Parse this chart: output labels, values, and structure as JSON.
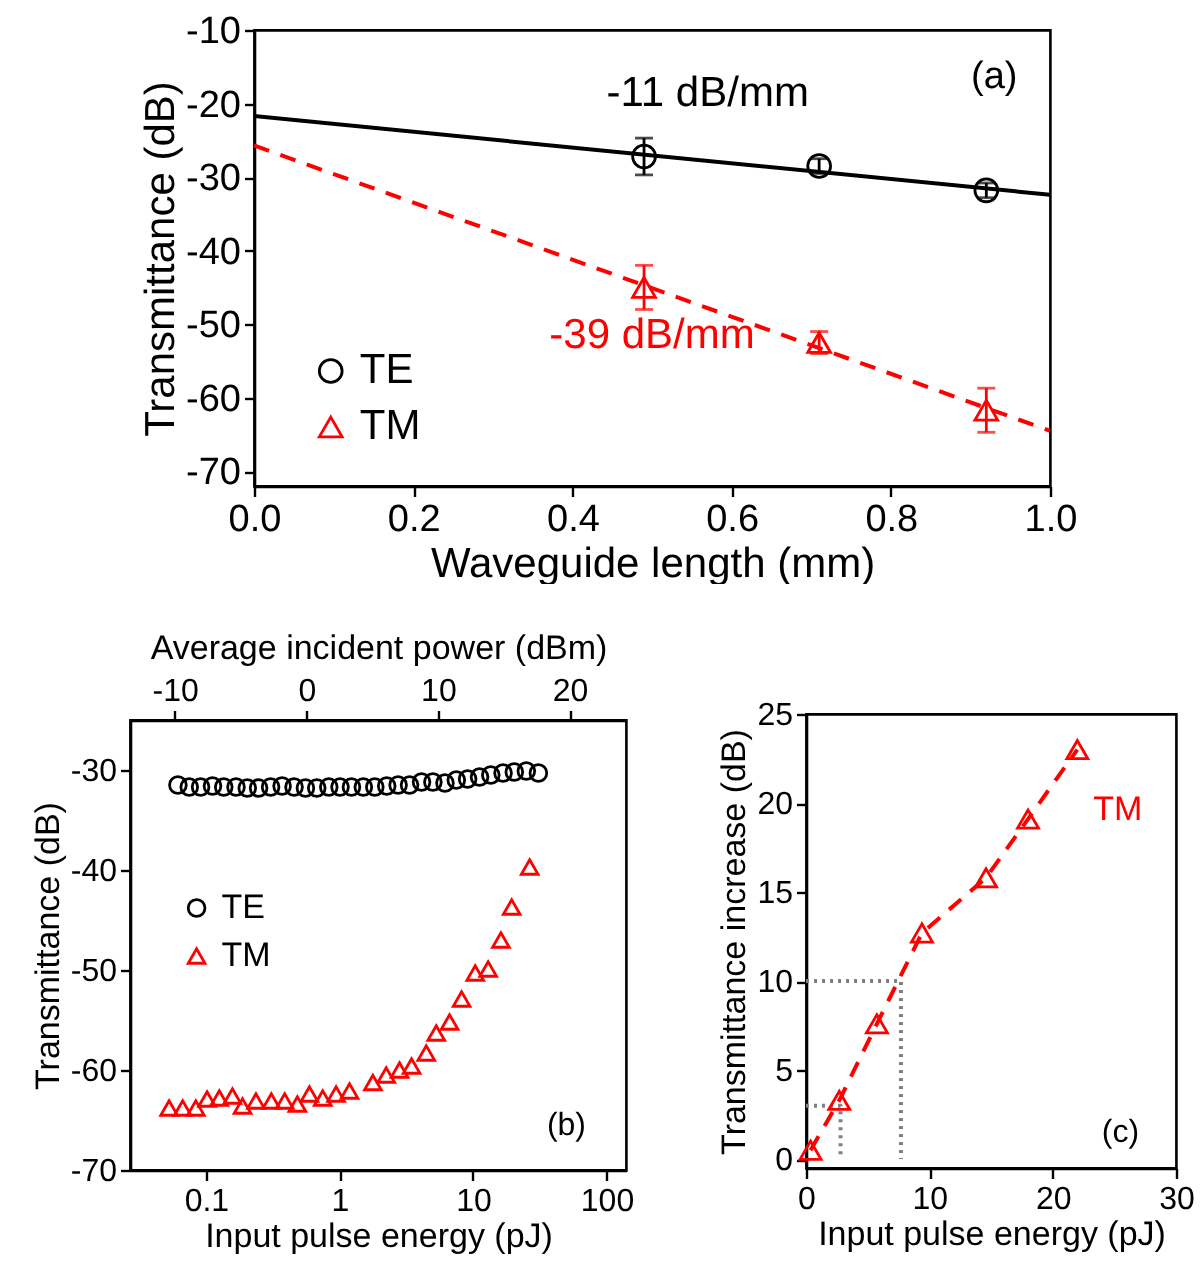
{
  "chart_data": [
    {
      "type": "scatter",
      "xlabel": "Waveguide length (mm)",
      "ylabel": "Transmittance (dB)",
      "xlim": [
        0,
        1
      ],
      "ylim": [
        -72,
        -10
      ],
      "xticks": [
        {
          "value": 0,
          "label": "0.0"
        },
        0.2,
        0.4,
        0.6,
        0.8,
        {
          "value": 1,
          "label": "1.0"
        }
      ],
      "yticks": [
        -70,
        -60,
        -50,
        -40,
        -30,
        -20,
        -10
      ],
      "legend": "bottom left",
      "annotations": [
        "(a)",
        "-11 dB/mm",
        "-39 dB/mm"
      ],
      "series": [
        {
          "name": "TE",
          "type": "scatter",
          "marker": "circle",
          "color": "#000000",
          "x": [
            0.49,
            0.71,
            0.92
          ],
          "values": [
            -27.2,
            -28.5,
            -31.8
          ],
          "errors": [
            2.5,
            1,
            1
          ]
        },
        {
          "name": "TM",
          "type": "scatter",
          "marker": "triangle",
          "color": "#ff0000",
          "x": [
            0.49,
            0.71,
            0.92
          ],
          "values": [
            -45,
            -52.5,
            -61.7
          ],
          "errors": [
            3,
            1.5,
            3
          ]
        },
        {
          "type": "line",
          "marker": "none",
          "line_style": "solid",
          "color": "#000000",
          "x": [
            0,
            1
          ],
          "values": [
            -21.7,
            -32.4
          ]
        },
        {
          "type": "line",
          "marker": "none",
          "line_style": "dashed",
          "color": "#ff0000",
          "x": [
            0,
            1
          ],
          "values": [
            -25.7,
            -64.5
          ]
        }
      ]
    },
    {
      "type": "scatter",
      "xlabel": "Input pulse energy (pJ)",
      "ylabel": "Transmittance (dB)",
      "x2label": "Average incident power (dBm)",
      "log": "x",
      "xlim": [
        0.027,
        140
      ],
      "xticks": [
        0.1,
        1,
        10,
        100
      ],
      "x2lim": [
        -13.4,
        24.3
      ],
      "x2ticks": [
        -10,
        0,
        10,
        20
      ],
      "ylim": [
        -70,
        -25
      ],
      "yticks": [
        -70,
        -60,
        -50,
        -40,
        -30
      ],
      "legend": "left",
      "annotations": [
        "(b)"
      ],
      "series": [
        {
          "name": "TE",
          "marker": "circle",
          "color": "#000000",
          "x": [
            0.0617,
            0.075,
            0.0912,
            0.112,
            0.136,
            0.168,
            0.204,
            0.248,
            0.305,
            0.372,
            0.457,
            0.556,
            0.676,
            0.832,
            1.01,
            1.23,
            1.51,
            1.84,
            2.26,
            2.75,
            3.35,
            4.12,
            5.01,
            6.17,
            7.5,
            9.12,
            11.2,
            13.6,
            16.8,
            20.4,
            25.1,
            30.9
          ],
          "values": [
            -31.5,
            -31.7,
            -31.7,
            -31.6,
            -31.7,
            -31.7,
            -31.8,
            -31.8,
            -31.7,
            -31.6,
            -31.7,
            -31.8,
            -31.8,
            -31.7,
            -31.7,
            -31.7,
            -31.7,
            -31.7,
            -31.6,
            -31.5,
            -31.5,
            -31.2,
            -31.2,
            -31.3,
            -31,
            -30.9,
            -30.7,
            -30.5,
            -30.3,
            -30.2,
            -30.1,
            -30.3
          ]
        },
        {
          "name": "TM",
          "marker": "triangle",
          "color": "#ff0000",
          "x": [
            0.053,
            0.067,
            0.084,
            0.102,
            0.126,
            0.158,
            0.188,
            0.237,
            0.309,
            0.389,
            0.484,
            0.596,
            0.75,
            0.944,
            1.19,
            1.78,
            2.24,
            2.82,
            3.47,
            4.47,
            5.31,
            6.68,
            8.22,
            10.4,
            13,
            16.2,
            19.5,
            26.6
          ],
          "values": [
            -63.8,
            -63.8,
            -63.8,
            -62.9,
            -62.8,
            -62.6,
            -63.6,
            -63.1,
            -63.1,
            -63.1,
            -63.4,
            -62.4,
            -62.8,
            -62.4,
            -62.1,
            -61.25,
            -60.5,
            -60,
            -59.6,
            -58.3,
            -56.3,
            -55.2,
            -52.9,
            -50.3,
            -49.9,
            -47,
            -43.7,
            -39.7
          ]
        }
      ]
    },
    {
      "type": "line",
      "xlabel": "Input pulse energy (pJ)",
      "ylabel": "Transmittance increase (dB)",
      "xlim": [
        0,
        30
      ],
      "xticks": [
        0,
        10,
        20,
        30
      ],
      "ylim": [
        -0.5,
        25
      ],
      "yticks": [
        0,
        5,
        10,
        15,
        20,
        25
      ],
      "annotations": [
        "(c)"
      ],
      "series": [
        {
          "type": "line",
          "line_style": "dotted",
          "marker": "none",
          "color": "#808080",
          "x": [
            0,
            7.7,
            7.7
          ],
          "values": [
            10,
            10,
            0
          ]
        },
        {
          "type": "line",
          "line_style": "dotted",
          "marker": "none",
          "color": "#808080",
          "x": [
            0,
            2.8,
            2.8
          ],
          "values": [
            3,
            3,
            0
          ]
        },
        {
          "name": "TM",
          "type": "line",
          "line_style": "dashed",
          "marker": "triangle",
          "color": "#ff0000",
          "x": [
            0.37,
            2.7,
            5.75,
            9.4,
            14.6,
            18,
            22
          ],
          "values": [
            0.5,
            3.3,
            7.6,
            12.7,
            15.8,
            19.1,
            23
          ]
        }
      ]
    }
  ]
}
